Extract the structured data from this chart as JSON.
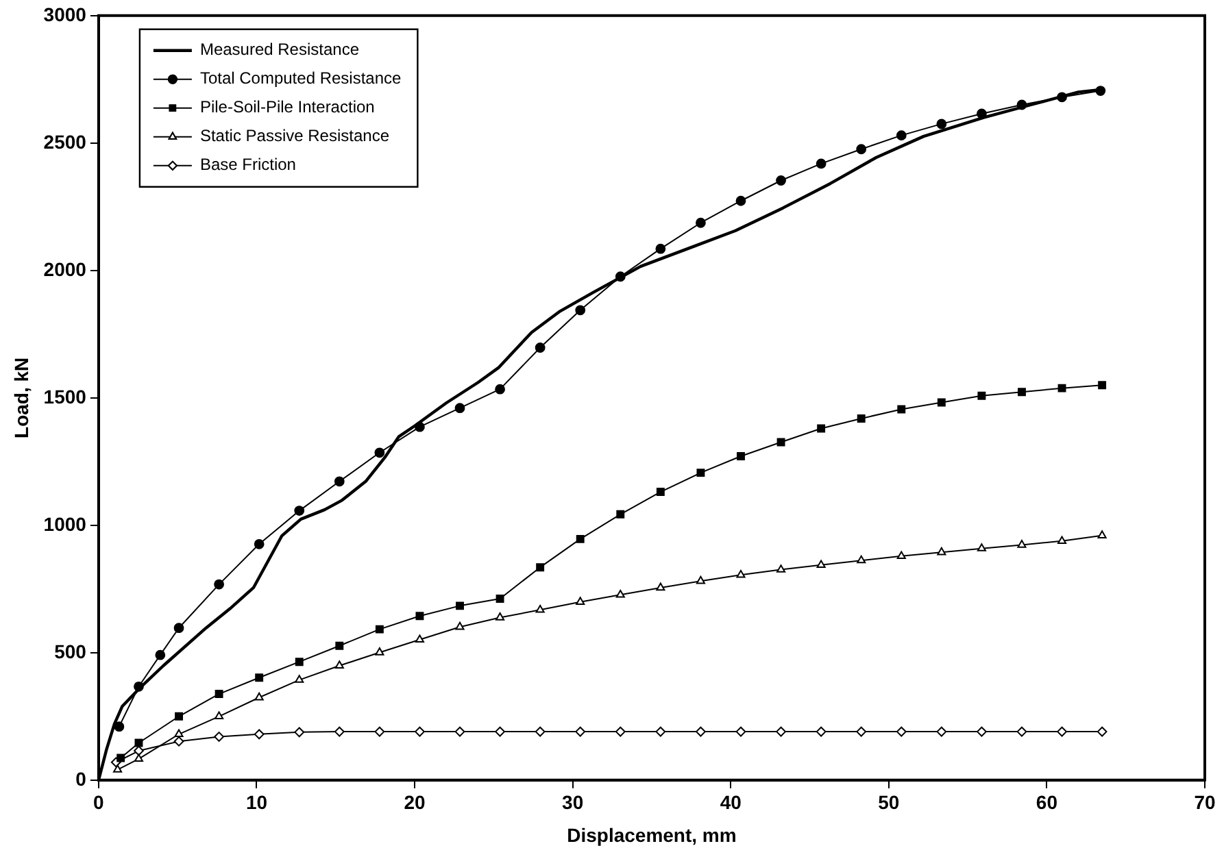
{
  "chart_data": {
    "type": "line",
    "xlabel": "Displacement, mm",
    "ylabel": "Load, kN",
    "xlim": [
      0,
      70
    ],
    "xticks": [
      0,
      10,
      20,
      30,
      40,
      50,
      60,
      70
    ],
    "ylim": [
      0,
      3000
    ],
    "yticks": [
      0,
      500,
      1000,
      1500,
      2000,
      2500,
      3000
    ],
    "grid": false,
    "legend": "top left",
    "series": [
      {
        "name": "Measured Resistance",
        "color": "#000000",
        "marker": "none",
        "x": [
          0,
          0.5,
          1,
          1.5,
          2.7,
          4.1,
          6.8,
          8.3,
          9.8,
          10.7,
          11.6,
          12.8,
          14.3,
          15.4,
          16.9,
          18.1,
          19,
          20,
          22,
          24,
          25.3,
          27.4,
          29.2,
          31.3,
          34.3,
          37.9,
          40.3,
          43.3,
          46.3,
          49.2,
          52.2,
          56,
          59,
          62,
          63.5
        ],
        "values": [
          0,
          120,
          220,
          290,
          367,
          449,
          597,
          672,
          755,
          857,
          959,
          1024,
          1061,
          1098,
          1172,
          1265,
          1348,
          1390,
          1480,
          1560,
          1618,
          1757,
          1840,
          1914,
          2016,
          2100,
          2156,
          2245,
          2341,
          2443,
          2526,
          2600,
          2650,
          2700,
          2710
        ]
      },
      {
        "name": "Total Computed Resistance",
        "color": "#000000",
        "marker": "circle",
        "x": [
          1.3,
          2.54,
          3.9,
          5.08,
          7.62,
          10.16,
          12.7,
          15.24,
          17.78,
          20.32,
          22.86,
          25.4,
          27.94,
          30.48,
          33.02,
          35.56,
          38.1,
          40.64,
          43.18,
          45.72,
          48.26,
          50.8,
          53.34,
          55.88,
          58.42,
          60.96,
          63.4
        ],
        "values": [
          210,
          367,
          491,
          597,
          768,
          926,
          1057,
          1172,
          1285,
          1386,
          1460,
          1534,
          1697,
          1844,
          1976,
          2085,
          2187,
          2273,
          2353,
          2419,
          2476,
          2530,
          2575,
          2615,
          2650,
          2680,
          2705
        ]
      },
      {
        "name": "Pile-Soil-Pile Interaction",
        "color": "#000000",
        "marker": "square",
        "x": [
          1.4,
          2.54,
          5.08,
          7.62,
          10.16,
          12.7,
          15.24,
          17.78,
          20.32,
          22.86,
          25.4,
          27.94,
          30.48,
          33.02,
          35.56,
          38.1,
          40.64,
          43.18,
          45.72,
          48.26,
          50.8,
          53.34,
          55.88,
          58.42,
          60.96,
          63.5
        ],
        "values": [
          87,
          146,
          250,
          338,
          402,
          464,
          527,
          592,
          644,
          684,
          712,
          835,
          946,
          1043,
          1131,
          1206,
          1271,
          1326,
          1380,
          1419,
          1455,
          1482,
          1508,
          1523,
          1538,
          1550
        ]
      },
      {
        "name": "Static Passive Resistance",
        "color": "#000000",
        "marker": "triangle",
        "x": [
          1.2,
          2.54,
          5.08,
          7.62,
          10.16,
          12.7,
          15.24,
          17.78,
          20.32,
          22.86,
          25.4,
          27.94,
          30.48,
          33.02,
          35.56,
          38.1,
          40.64,
          43.18,
          45.72,
          48.26,
          50.8,
          53.34,
          55.88,
          58.42,
          60.96,
          63.5
        ],
        "values": [
          41,
          83,
          180,
          250,
          324,
          393,
          449,
          501,
          551,
          601,
          638,
          668,
          699,
          727,
          755,
          781,
          805,
          826,
          844,
          862,
          879,
          894,
          909,
          923,
          938,
          960
        ]
      },
      {
        "name": "Base Friction",
        "color": "#000000",
        "marker": "diamond",
        "x": [
          1.1,
          2.54,
          5.08,
          7.62,
          10.16,
          12.7,
          15.24,
          17.78,
          20.32,
          22.86,
          25.4,
          27.94,
          30.48,
          33.02,
          35.56,
          38.1,
          40.64,
          43.18,
          45.72,
          48.26,
          50.8,
          53.34,
          55.88,
          58.42,
          60.96,
          63.5
        ],
        "values": [
          70,
          115,
          152,
          170,
          180,
          188,
          190,
          190,
          190,
          190,
          190,
          190,
          190,
          190,
          190,
          190,
          190,
          190,
          190,
          190,
          190,
          190,
          190,
          190,
          190,
          190
        ]
      }
    ]
  }
}
